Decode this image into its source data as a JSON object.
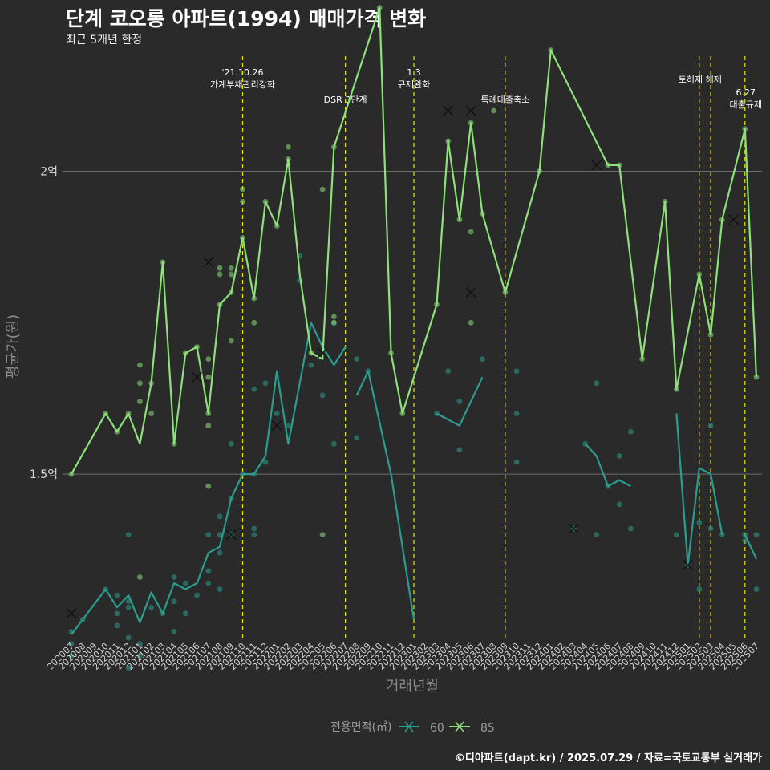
{
  "header": {
    "title": "단계 코오롱 아파트(1994) 매매가격 변화",
    "subtitle": "최근 5개년 한정"
  },
  "footer": {
    "credit": "©디아파트(dapt.kr) / 2025.07.29 / 자료=국토교통부 실거래가"
  },
  "colors": {
    "background": "#2a2a2a",
    "series_60": "#2a9d8f",
    "series_85": "#8ee07a",
    "event_line": "#e6e600",
    "gridline": "#6e6e6e"
  },
  "chart_data": {
    "type": "line",
    "title": "단계 코오롱 아파트(1994) 매매가격 변화",
    "subtitle": "최근 5개년 한정",
    "xlabel": "거래년월",
    "ylabel": "평균가(원)",
    "x_categories": [
      "202007",
      "202008",
      "202009",
      "202010",
      "202011",
      "202012",
      "202101",
      "202102",
      "202103",
      "202104",
      "202105",
      "202106",
      "202107",
      "202108",
      "202109",
      "202110",
      "202111",
      "202112",
      "202201",
      "202202",
      "202203",
      "202204",
      "202205",
      "202206",
      "202207",
      "202208",
      "202209",
      "202210",
      "202211",
      "202212",
      "202301",
      "202302",
      "202303",
      "202304",
      "202305",
      "202306",
      "202307",
      "202308",
      "202309",
      "202310",
      "202311",
      "202312",
      "202401",
      "202402",
      "202403",
      "202404",
      "202405",
      "202406",
      "202407",
      "202408",
      "202409",
      "202410",
      "202411",
      "202412",
      "202501",
      "202502",
      "202503",
      "202504",
      "202505",
      "202506",
      "202507"
    ],
    "y_ticks": [
      {
        "value": 15000,
        "label": "1.5억"
      },
      {
        "value": 20000,
        "label": "2억"
      }
    ],
    "y_unit": "만원",
    "ylim": [
      12300,
      21900
    ],
    "grid": "horizontal",
    "legend": {
      "title": "전용면적(㎡)",
      "position": "bottom",
      "entries": [
        "60",
        "85"
      ]
    },
    "events": [
      {
        "month": "202110",
        "lines": [
          "'21.10.26",
          "가계부채관리강화"
        ],
        "label_row": "top"
      },
      {
        "month": "202207",
        "lines": [
          "DSR 3단계"
        ],
        "label_row": "low"
      },
      {
        "month": "202301",
        "lines": [
          "1.3",
          "규제완화"
        ],
        "label_row": "top"
      },
      {
        "month": "202309",
        "lines": [
          "특례대출축소"
        ],
        "label_row": "low"
      },
      {
        "month": "202502",
        "lines": [
          "토허제 해제"
        ],
        "label_row": "mid"
      },
      {
        "month": "202503",
        "lines": [],
        "label_row": "mid"
      },
      {
        "month": "202506",
        "lines": [
          "6.27",
          "대출규제"
        ],
        "label_row": "right"
      }
    ],
    "series": [
      {
        "name": "60",
        "line": [
          [
            "202007",
            12350
          ],
          [
            "202008",
            12600
          ],
          [
            "202010",
            13100
          ],
          [
            "202011",
            12800
          ],
          [
            "202012",
            13000
          ],
          [
            "202101",
            12550
          ],
          [
            "202102",
            13050
          ],
          [
            "202103",
            12700
          ],
          [
            "202104",
            13200
          ],
          [
            "202105",
            13100
          ],
          [
            "202106",
            13200
          ],
          [
            "202107",
            13700
          ],
          [
            "202108",
            13800
          ],
          [
            "202109",
            14600
          ],
          [
            "202110",
            15000
          ],
          [
            "202111",
            15000
          ],
          [
            "202112",
            15300
          ],
          [
            "202201",
            16700
          ],
          [
            "202202",
            15500
          ],
          [
            "202203",
            16500
          ],
          [
            "202204",
            17500
          ],
          [
            "202205",
            17100
          ],
          [
            "202206",
            16800
          ],
          [
            "202207",
            17100
          ],
          null,
          [
            "202208",
            16300
          ],
          [
            "202209",
            16700
          ],
          [
            "202211",
            15000
          ],
          [
            "202301",
            12600
          ],
          null,
          [
            "202303",
            16000
          ],
          [
            "202305",
            15800
          ],
          [
            "202307",
            16600
          ],
          null,
          [
            "202404",
            15500
          ],
          [
            "202405",
            15300
          ],
          [
            "202406",
            14800
          ],
          [
            "202407",
            14900
          ],
          [
            "202408",
            14800
          ],
          null,
          [
            "202412",
            16000
          ],
          [
            "202501",
            13500
          ],
          [
            "202502",
            15100
          ],
          [
            "202503",
            15000
          ],
          [
            "202504",
            14000
          ],
          null,
          [
            "202506",
            14000
          ],
          [
            "202507",
            13600
          ]
        ],
        "points": [
          [
            "202007",
            12400
          ],
          [
            "202007",
            12200
          ],
          [
            "202007",
            12000
          ],
          [
            "202008",
            12600
          ],
          [
            "202010",
            13100
          ],
          [
            "202011",
            12500
          ],
          [
            "202011",
            12700
          ],
          [
            "202011",
            13000
          ],
          [
            "202012",
            14000
          ],
          [
            "202012",
            12900
          ],
          [
            "202012",
            12800
          ],
          [
            "202012",
            12300
          ],
          [
            "202012",
            11800
          ],
          [
            "202101",
            12000
          ],
          [
            "202101",
            12200
          ],
          [
            "202102",
            12800
          ],
          [
            "202103",
            12700
          ],
          [
            "202104",
            13300
          ],
          [
            "202104",
            12900
          ],
          [
            "202104",
            12400
          ],
          [
            "202105",
            13200
          ],
          [
            "202105",
            12700
          ],
          [
            "202106",
            13000
          ],
          [
            "202107",
            13200
          ],
          [
            "202107",
            13400
          ],
          [
            "202107",
            14000
          ],
          [
            "202108",
            13700
          ],
          [
            "202108",
            13100
          ],
          [
            "202108",
            14300
          ],
          [
            "202108",
            14000
          ],
          [
            "202109",
            14600
          ],
          [
            "202109",
            14000
          ],
          [
            "202109",
            15500
          ],
          [
            "202110",
            15000
          ],
          [
            "202111",
            15000
          ],
          [
            "202111",
            14100
          ],
          [
            "202111",
            14000
          ],
          [
            "202111",
            16400
          ],
          [
            "202112",
            15200
          ],
          [
            "202112",
            16500
          ],
          [
            "202201",
            16000
          ],
          [
            "202202",
            15800
          ],
          [
            "202203",
            18200
          ],
          [
            "202203",
            18600
          ],
          [
            "202204",
            16800
          ],
          [
            "202205",
            16300
          ],
          [
            "202206",
            15500
          ],
          [
            "202206",
            17500
          ],
          [
            "202208",
            16900
          ],
          [
            "202208",
            15600
          ],
          [
            "202209",
            16700
          ],
          [
            "202303",
            16000
          ],
          [
            "202304",
            16700
          ],
          [
            "202305",
            16200
          ],
          [
            "202305",
            15400
          ],
          [
            "202307",
            16900
          ],
          [
            "202310",
            16700
          ],
          [
            "202310",
            16000
          ],
          [
            "202310",
            15200
          ],
          [
            "202403",
            14100
          ],
          [
            "202404",
            15500
          ],
          [
            "202405",
            16500
          ],
          [
            "202405",
            14000
          ],
          [
            "202406",
            14800
          ],
          [
            "202407",
            14500
          ],
          [
            "202407",
            15300
          ],
          [
            "202408",
            14100
          ],
          [
            "202408",
            15700
          ],
          [
            "202412",
            14000
          ],
          [
            "202501",
            13500
          ],
          [
            "202502",
            13100
          ],
          [
            "202502",
            14200
          ],
          [
            "202503",
            14100
          ],
          [
            "202503",
            15800
          ],
          [
            "202504",
            14000
          ],
          [
            "202506",
            14000
          ],
          [
            "202506",
            13900
          ],
          [
            "202507",
            14000
          ],
          [
            "202507",
            13100
          ]
        ],
        "crosses": [
          [
            "202007",
            12700
          ],
          [
            "202109",
            14000
          ],
          [
            "202201",
            15800
          ],
          [
            "202205",
            17000
          ],
          [
            "202403",
            14100
          ],
          [
            "202501",
            13500
          ]
        ]
      },
      {
        "name": "85",
        "line": [
          [
            "202007",
            15000
          ],
          [
            "202010",
            16000
          ],
          [
            "202011",
            15700
          ],
          [
            "202012",
            16000
          ],
          [
            "202101",
            15500
          ],
          [
            "202102",
            16500
          ],
          [
            "202103",
            18500
          ],
          [
            "202104",
            15500
          ],
          [
            "202105",
            17000
          ],
          [
            "202106",
            17100
          ],
          [
            "202107",
            16000
          ],
          [
            "202108",
            17800
          ],
          [
            "202109",
            18000
          ],
          [
            "202110",
            18900
          ],
          [
            "202111",
            17900
          ],
          [
            "202112",
            19500
          ],
          [
            "202201",
            19100
          ],
          [
            "202202",
            20200
          ],
          [
            "202203",
            18300
          ],
          [
            "202204",
            17000
          ],
          [
            "202205",
            16900
          ],
          [
            "202206",
            20400
          ],
          [
            "202210",
            22700
          ],
          [
            "202211",
            17000
          ],
          [
            "202212",
            16000
          ],
          [
            "202303",
            17800
          ],
          [
            "202304",
            20500
          ],
          [
            "202305",
            19200
          ],
          [
            "202306",
            20800
          ],
          [
            "202307",
            19300
          ],
          [
            "202309",
            18000
          ],
          [
            "202312",
            20000
          ],
          [
            "202401",
            22000
          ],
          [
            "202406",
            20100
          ],
          [
            "202407",
            20100
          ],
          [
            "202409",
            16900
          ],
          [
            "202411",
            19500
          ],
          [
            "202412",
            16400
          ],
          [
            "202502",
            18300
          ],
          [
            "202503",
            17300
          ],
          [
            "202504",
            19200
          ],
          [
            "202506",
            20700
          ],
          [
            "202507",
            16600
          ]
        ],
        "points": [
          [
            "202007",
            15000
          ],
          [
            "202010",
            16000
          ],
          [
            "202011",
            15700
          ],
          [
            "202012",
            16000
          ],
          [
            "202101",
            16500
          ],
          [
            "202101",
            16200
          ],
          [
            "202101",
            16800
          ],
          [
            "202101",
            13300
          ],
          [
            "202102",
            16500
          ],
          [
            "202102",
            16000
          ],
          [
            "202103",
            18500
          ],
          [
            "202104",
            15500
          ],
          [
            "202105",
            17000
          ],
          [
            "202106",
            17100
          ],
          [
            "202107",
            16000
          ],
          [
            "202107",
            15800
          ],
          [
            "202107",
            16600
          ],
          [
            "202107",
            16900
          ],
          [
            "202107",
            14800
          ],
          [
            "202108",
            17800
          ],
          [
            "202108",
            18300
          ],
          [
            "202108",
            18400
          ],
          [
            "202109",
            18000
          ],
          [
            "202109",
            17200
          ],
          [
            "202109",
            18300
          ],
          [
            "202109",
            18400
          ],
          [
            "202110",
            18900
          ],
          [
            "202110",
            19500
          ],
          [
            "202110",
            19700
          ],
          [
            "202111",
            17900
          ],
          [
            "202111",
            17500
          ],
          [
            "202112",
            19500
          ],
          [
            "202201",
            19100
          ],
          [
            "202202",
            20200
          ],
          [
            "202202",
            20400
          ],
          [
            "202204",
            17000
          ],
          [
            "202205",
            19700
          ],
          [
            "202205",
            14000
          ],
          [
            "202206",
            20400
          ],
          [
            "202206",
            17500
          ],
          [
            "202206",
            17600
          ],
          [
            "202210",
            22700
          ],
          [
            "202211",
            17000
          ],
          [
            "202212",
            16000
          ],
          [
            "202303",
            17800
          ],
          [
            "202304",
            20500
          ],
          [
            "202305",
            19200
          ],
          [
            "202306",
            20800
          ],
          [
            "202306",
            19000
          ],
          [
            "202306",
            17500
          ],
          [
            "202307",
            19300
          ],
          [
            "202308",
            21000
          ],
          [
            "202309",
            18000
          ],
          [
            "202312",
            20000
          ],
          [
            "202401",
            22000
          ],
          [
            "202406",
            20100
          ],
          [
            "202407",
            20100
          ],
          [
            "202409",
            16900
          ],
          [
            "202411",
            19500
          ],
          [
            "202412",
            16400
          ],
          [
            "202502",
            18300
          ],
          [
            "202503",
            17300
          ],
          [
            "202504",
            19200
          ],
          [
            "202506",
            20700
          ],
          [
            "202507",
            16600
          ]
        ],
        "crosses": [
          [
            "202106",
            16600
          ],
          [
            "202107",
            18500
          ],
          [
            "202304",
            21000
          ],
          [
            "202306",
            21000
          ],
          [
            "202306",
            18000
          ],
          [
            "202405",
            20100
          ],
          [
            "202505",
            19200
          ]
        ]
      }
    ]
  }
}
